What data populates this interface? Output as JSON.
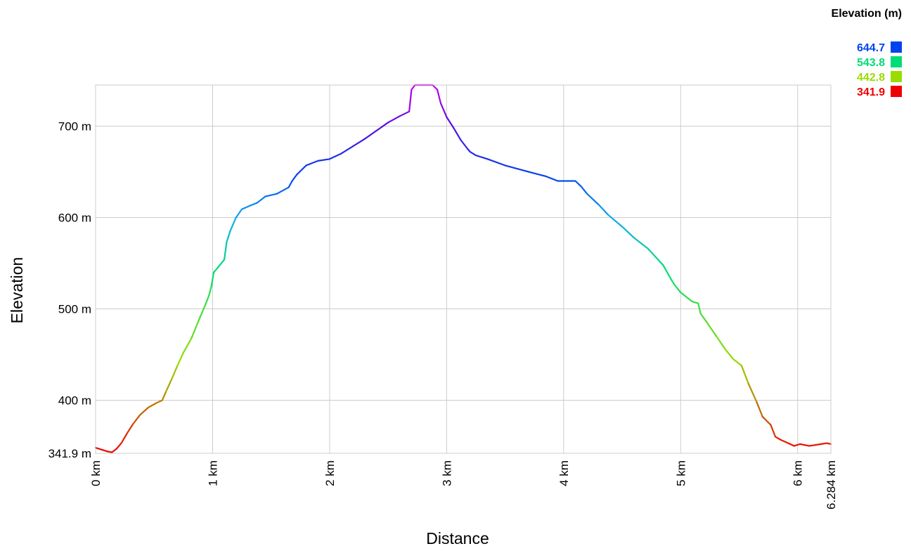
{
  "chart_data": {
    "type": "line",
    "title": "",
    "xlabel": "Distance",
    "ylabel": "Elevation",
    "xlim": [
      0,
      6.284
    ],
    "ylim": [
      341.9,
      745
    ],
    "grid": true,
    "x_ticks": [
      {
        "value": 0,
        "label": "0 km"
      },
      {
        "value": 1,
        "label": "1 km"
      },
      {
        "value": 2,
        "label": "2 km"
      },
      {
        "value": 3,
        "label": "3 km"
      },
      {
        "value": 4,
        "label": "4 km"
      },
      {
        "value": 5,
        "label": "5 km"
      },
      {
        "value": 6,
        "label": "6 km"
      },
      {
        "value": 6.284,
        "label": "6.284 km"
      }
    ],
    "y_ticks": [
      {
        "value": 341.9,
        "label": "341.9 m"
      },
      {
        "value": 400,
        "label": "400 m"
      },
      {
        "value": 500,
        "label": "500 m"
      },
      {
        "value": 600,
        "label": "600 m"
      },
      {
        "value": 700,
        "label": "700 m"
      }
    ],
    "legend": {
      "title": "Elevation (m)",
      "placement": "top-right",
      "entries": [
        {
          "label": "644.7",
          "color": "#0044ee"
        },
        {
          "label": "543.8",
          "color": "#00dd77"
        },
        {
          "label": "442.8",
          "color": "#99dd00"
        },
        {
          "label": "341.9",
          "color": "#ee0000"
        }
      ]
    },
    "color_scale": [
      {
        "value": 341.9,
        "color": "#ee0000"
      },
      {
        "value": 442.8,
        "color": "#99dd00"
      },
      {
        "value": 543.8,
        "color": "#00dd77"
      },
      {
        "value": 600,
        "color": "#11aaee"
      },
      {
        "value": 644.7,
        "color": "#0044ee"
      },
      {
        "value": 700,
        "color": "#5511dd"
      },
      {
        "value": 745,
        "color": "#cc00ee"
      }
    ],
    "series": [
      {
        "x": [
          0,
          0.05,
          0.1,
          0.14,
          0.18,
          0.22,
          0.27,
          0.32,
          0.38,
          0.45,
          0.52,
          0.57,
          0.6,
          0.65,
          0.7,
          0.75,
          0.82,
          0.88,
          0.94,
          0.97,
          0.99,
          1.01,
          1.05,
          1.1,
          1.12,
          1.15,
          1.2,
          1.25,
          1.32,
          1.38,
          1.45,
          1.55,
          1.65,
          1.68,
          1.72,
          1.8,
          1.9,
          2.0,
          2.1,
          2.2,
          2.3,
          2.4,
          2.5,
          2.6,
          2.68,
          2.7,
          2.73,
          2.8,
          2.88,
          2.92,
          2.95,
          3.0,
          3.06,
          3.12,
          3.18,
          3.2,
          3.25,
          3.35,
          3.5,
          3.7,
          3.85,
          3.95,
          4.1,
          4.15,
          4.2,
          4.3,
          4.38,
          4.5,
          4.6,
          4.72,
          4.85,
          4.92,
          4.95,
          5.0,
          5.1,
          5.15,
          5.17,
          5.22,
          5.3,
          5.38,
          5.45,
          5.52,
          5.58,
          5.65,
          5.7,
          5.77,
          5.81,
          5.85,
          5.92,
          5.97,
          6.02,
          6.06,
          6.1,
          6.15,
          6.2,
          6.25,
          6.284
        ],
        "y": [
          348,
          346,
          344,
          343,
          347,
          353,
          364,
          374,
          384,
          392,
          397,
          400,
          409,
          423,
          438,
          452,
          468,
          487,
          505,
          515,
          525,
          540,
          546,
          554,
          573,
          585,
          600,
          609,
          613,
          616,
          623,
          626,
          633,
          640,
          647,
          657,
          662,
          664,
          670,
          678,
          686,
          695,
          704,
          711,
          716,
          740,
          745,
          745,
          745,
          740,
          725,
          710,
          698,
          685,
          675,
          672,
          668,
          664,
          657,
          650,
          645,
          640,
          640,
          634,
          626,
          614,
          603,
          590,
          578,
          566,
          548,
          532,
          526,
          518,
          508,
          506,
          495,
          486,
          471,
          456,
          445,
          438,
          418,
          398,
          382,
          373,
          360,
          357,
          353,
          350,
          352,
          351,
          350,
          351,
          352,
          353,
          352
        ]
      }
    ]
  }
}
